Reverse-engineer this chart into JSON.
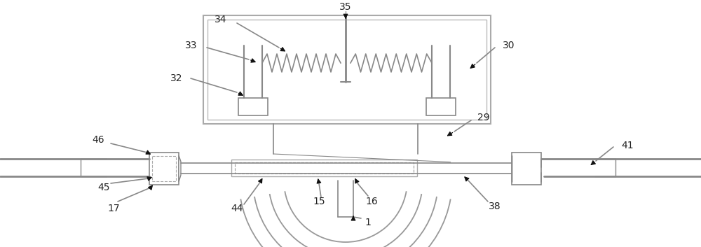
{
  "bg_color": "#ffffff",
  "lc": "#888888",
  "lc2": "#aaaaaa",
  "dk": "#333333",
  "figsize": [
    10.0,
    3.53
  ],
  "dpi": 100
}
